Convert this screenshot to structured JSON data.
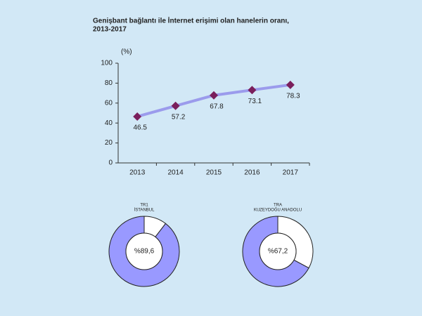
{
  "chart_data": [
    {
      "type": "line",
      "title": [
        "Genişbant bağlantı ile İnternet erişimi olan hanelerin oranı,",
        "2013-2017"
      ],
      "ylabel": "(%)",
      "categories": [
        "2013",
        "2014",
        "2015",
        "2016",
        "2017"
      ],
      "values": [
        46.5,
        57.2,
        67.8,
        73.1,
        78.3
      ],
      "color": "#9b9bec",
      "marker_color": "#7a1f5c",
      "ylim": [
        0,
        100
      ],
      "yticks": [
        0,
        20,
        40,
        60,
        80,
        100
      ]
    },
    {
      "type": "pie",
      "title": [
        "TR1",
        "İSTANBUL"
      ],
      "values": [
        89.6,
        10.4
      ],
      "value_labels": [
        "%89,6",
        null
      ],
      "colors": [
        "#9999ff",
        "#ffffff"
      ]
    },
    {
      "type": "pie",
      "title": [
        "TRA",
        "KUZEYDOĞU ANADOLU"
      ],
      "values": [
        67.2,
        32.8
      ],
      "value_labels": [
        "%67,2",
        null
      ],
      "colors": [
        "#9999ff",
        "#ffffff"
      ]
    }
  ]
}
